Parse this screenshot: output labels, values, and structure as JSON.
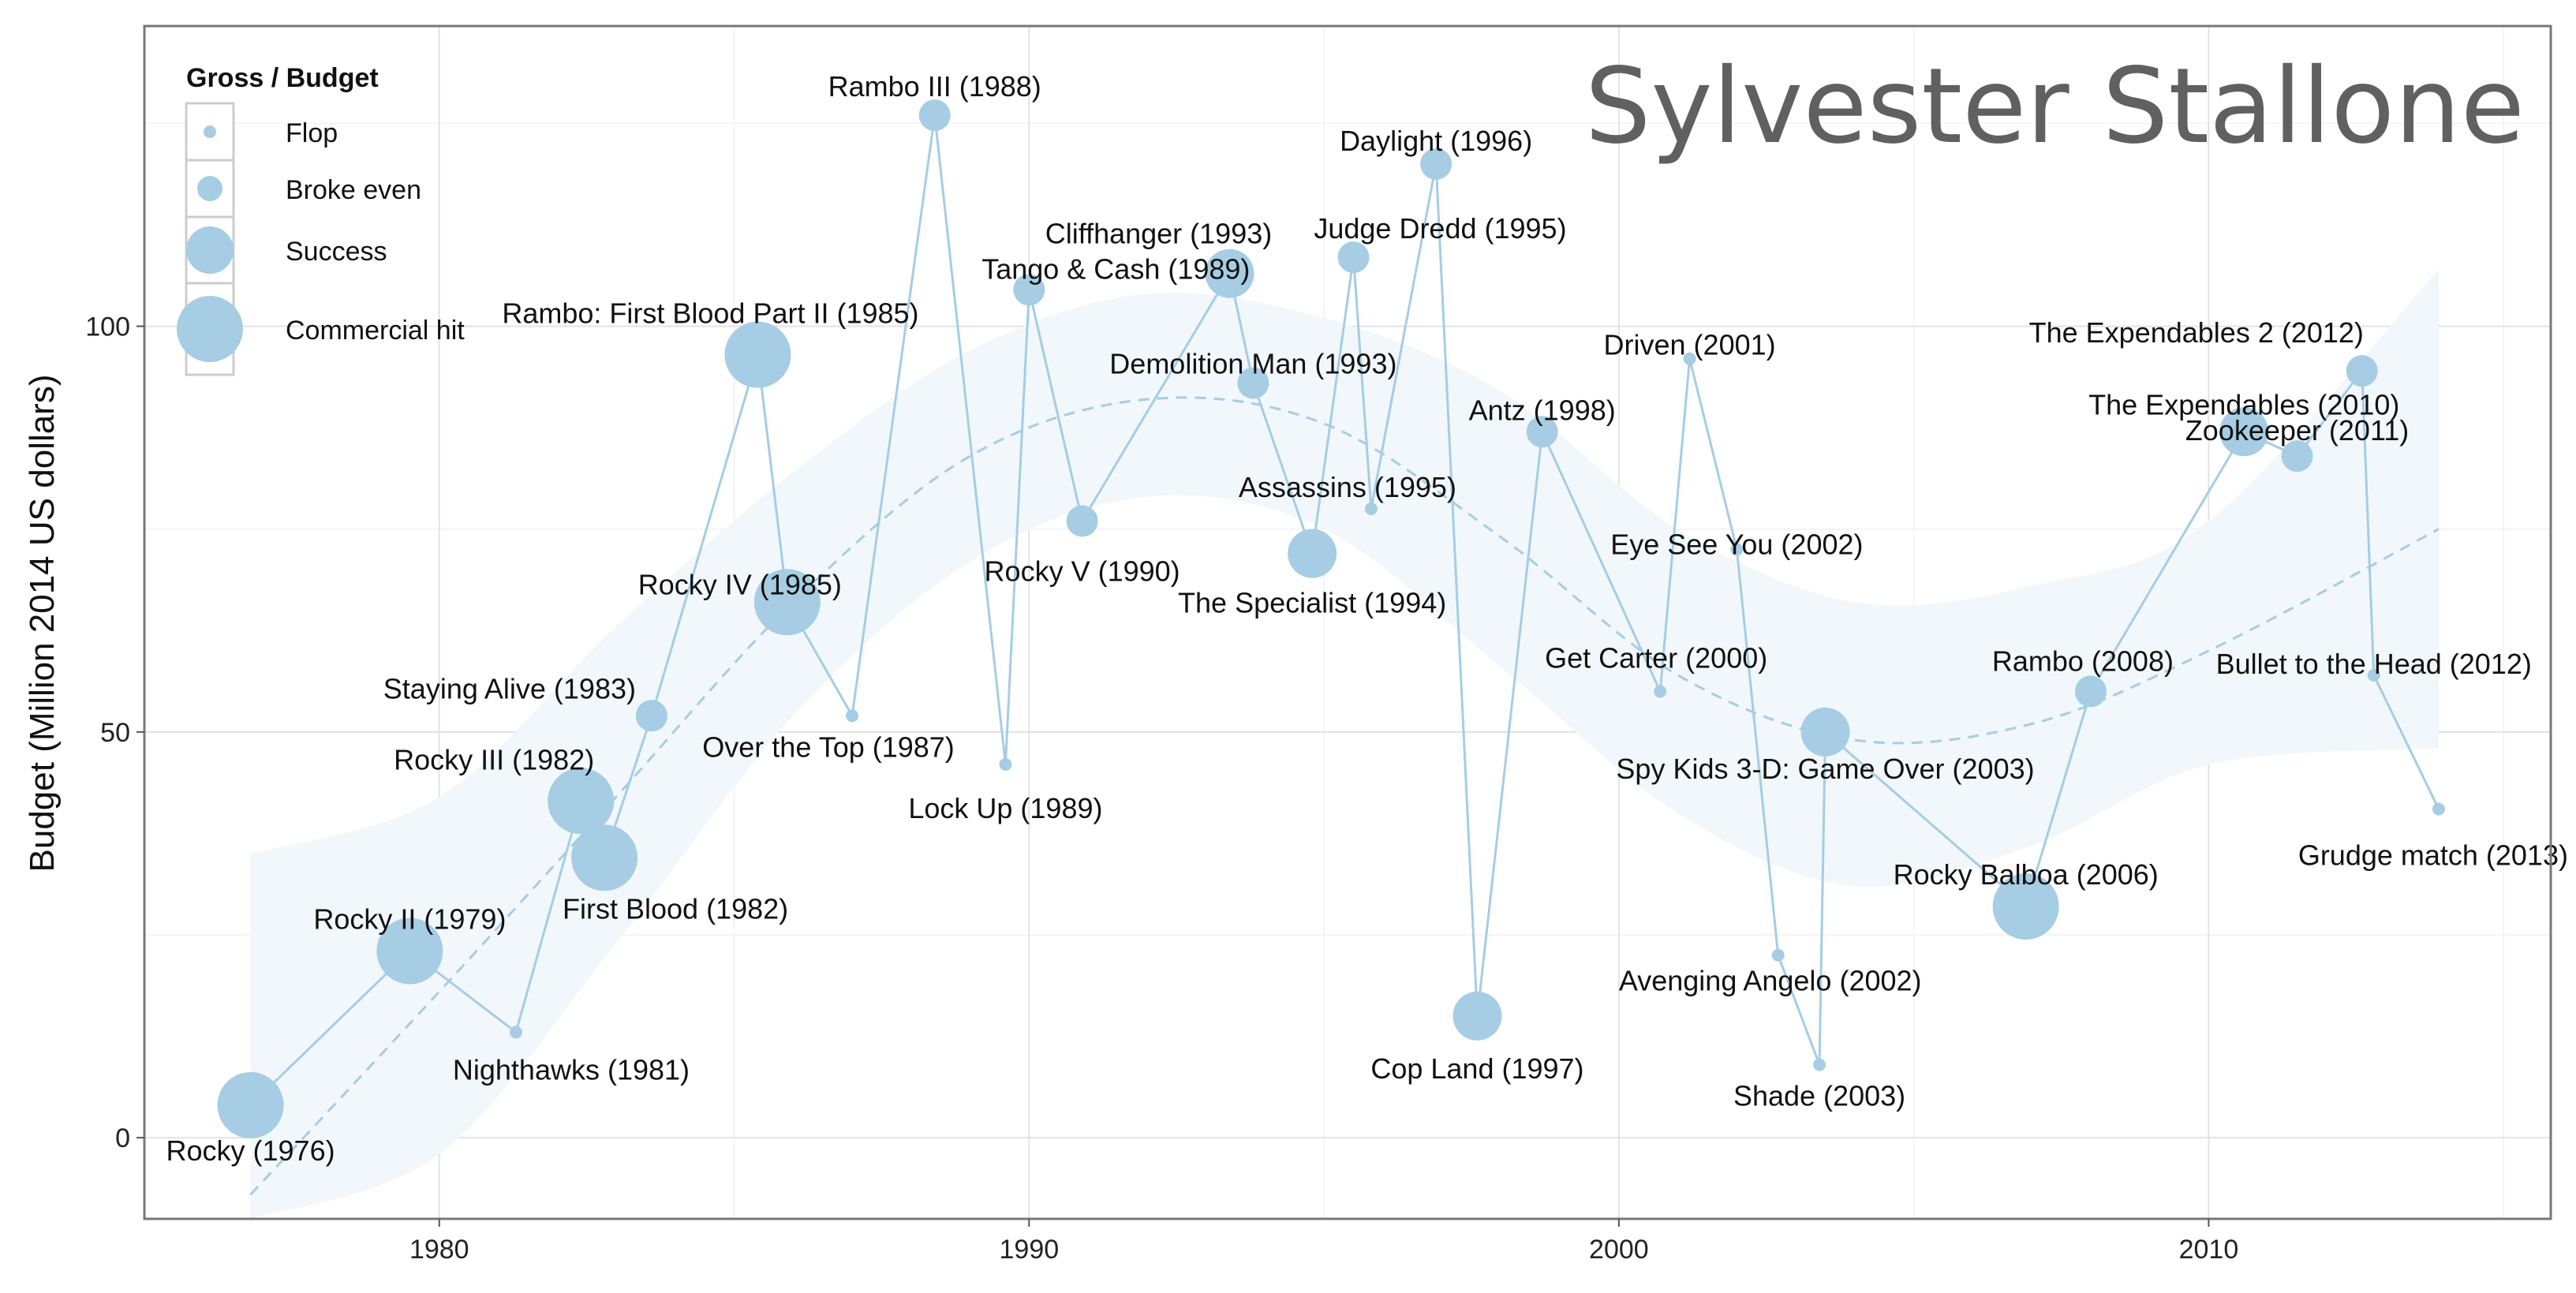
{
  "chart_data": {
    "type": "scatter",
    "title": "Sylvester Stallone",
    "xlabel": "",
    "ylabel": "Budget (Million 2014 US dollars)",
    "xlim": [
      1975,
      2015.8
    ],
    "ylim": [
      -10,
      137
    ],
    "xticks": [
      1980,
      1990,
      2000,
      2010
    ],
    "yticks": [
      0,
      50,
      100
    ],
    "grid": true,
    "legend_position": "top-left",
    "point_color": "#a6cde4",
    "legend": {
      "title": "Gross / Budget",
      "entries": [
        "Flop",
        "Broke even",
        "Success",
        "Commercial hit"
      ]
    },
    "points": [
      {
        "label": "Rocky (1976)",
        "x": 1976.8,
        "y": 4,
        "category": "Commercial hit"
      },
      {
        "label": "Rocky II (1979)",
        "x": 1979.5,
        "y": 23,
        "category": "Commercial hit"
      },
      {
        "label": "Nighthawks (1981)",
        "x": 1981.3,
        "y": 13,
        "category": "Flop"
      },
      {
        "label": "Rocky III (1982)",
        "x": 1982.4,
        "y": 41.5,
        "category": "Commercial hit"
      },
      {
        "label": "First Blood (1982)",
        "x": 1982.8,
        "y": 34.5,
        "category": "Commercial hit"
      },
      {
        "label": "Staying Alive (1983)",
        "x": 1983.6,
        "y": 52,
        "category": "Broke even"
      },
      {
        "label": "Rambo: First Blood Part II (1985)",
        "x": 1985.4,
        "y": 96.5,
        "category": "Commercial hit"
      },
      {
        "label": "Rocky IV (1985)",
        "x": 1985.9,
        "y": 66,
        "category": "Commercial hit"
      },
      {
        "label": "Over the Top (1987)",
        "x": 1987.0,
        "y": 52,
        "category": "Flop"
      },
      {
        "label": "Rambo III (1988)",
        "x": 1988.4,
        "y": 126,
        "category": "Broke even"
      },
      {
        "label": "Lock Up (1989)",
        "x": 1989.6,
        "y": 46,
        "category": "Flop"
      },
      {
        "label": "Tango & Cash (1989)",
        "x": 1990.0,
        "y": 104.5,
        "category": "Broke even"
      },
      {
        "label": "Rocky V (1990)",
        "x": 1990.9,
        "y": 76,
        "category": "Broke even"
      },
      {
        "label": "Cliffhanger (1993)",
        "x": 1993.4,
        "y": 106.5,
        "category": "Success"
      },
      {
        "label": "Demolition Man (1993)",
        "x": 1993.8,
        "y": 93,
        "category": "Broke even"
      },
      {
        "label": "The Specialist (1994)",
        "x": 1994.8,
        "y": 72,
        "category": "Success"
      },
      {
        "label": "Judge Dredd (1995)",
        "x": 1995.5,
        "y": 108.5,
        "category": "Broke even"
      },
      {
        "label": "Assassins (1995)",
        "x": 1995.8,
        "y": 77.5,
        "category": "Flop"
      },
      {
        "label": "Daylight (1996)",
        "x": 1996.9,
        "y": 120,
        "category": "Broke even"
      },
      {
        "label": "Cop Land (1997)",
        "x": 1997.6,
        "y": 15,
        "category": "Success"
      },
      {
        "label": "Antz (1998)",
        "x": 1998.7,
        "y": 87,
        "category": "Broke even"
      },
      {
        "label": "Get Carter (2000)",
        "x": 2000.7,
        "y": 55,
        "category": "Flop"
      },
      {
        "label": "Driven (2001)",
        "x": 2001.2,
        "y": 96,
        "category": "Flop"
      },
      {
        "label": "Eye See You (2002)",
        "x": 2002.0,
        "y": 72.5,
        "category": "Flop"
      },
      {
        "label": "Avenging Angelo (2002)",
        "x": 2002.7,
        "y": 22.5,
        "category": "Flop"
      },
      {
        "label": "Shade (2003)",
        "x": 2003.4,
        "y": 9,
        "category": "Flop"
      },
      {
        "label": "Spy Kids 3-D: Game Over (2003)",
        "x": 2003.5,
        "y": 50,
        "category": "Success"
      },
      {
        "label": "Rocky Balboa (2006)",
        "x": 2006.9,
        "y": 28.5,
        "category": "Commercial hit"
      },
      {
        "label": "Rambo (2008)",
        "x": 2008.0,
        "y": 55,
        "category": "Broke even"
      },
      {
        "label": "The Expendables (2010)",
        "x": 2010.6,
        "y": 87,
        "category": "Success"
      },
      {
        "label": "Zookeeper (2011)",
        "x": 2011.5,
        "y": 84,
        "category": "Broke even"
      },
      {
        "label": "The Expendables 2 (2012)",
        "x": 2012.6,
        "y": 94.5,
        "category": "Broke even"
      },
      {
        "label": "Bullet to the Head (2012)",
        "x": 2012.8,
        "y": 57,
        "category": "Flop"
      },
      {
        "label": "Grudge match (2013)",
        "x": 2013.9,
        "y": 40.5,
        "category": "Flop"
      }
    ],
    "trend_line": {
      "x": [
        1976.8,
        1980,
        1983,
        1986,
        1989,
        1992,
        1995,
        1998,
        2001,
        2004,
        2007,
        2010,
        2013.9
      ],
      "y": [
        -7,
        18,
        42,
        66,
        84,
        91,
        88,
        74,
        57,
        49,
        51,
        60,
        75
      ]
    },
    "confidence_band": {
      "x": [
        1976.8,
        1980,
        1983,
        1986,
        1989,
        1992,
        1995,
        1998,
        2001,
        2004,
        2007,
        2010,
        2013.9
      ],
      "lower": [
        -10,
        -2,
        24,
        52,
        71,
        79,
        75,
        58,
        40,
        31,
        36,
        46,
        48
      ],
      "upper": [
        35,
        42,
        63,
        82,
        97,
        104,
        101,
        92,
        75,
        66,
        68,
        76,
        107
      ]
    }
  }
}
